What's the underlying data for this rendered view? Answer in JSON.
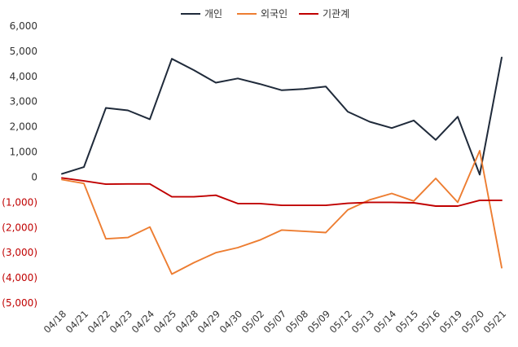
{
  "chart_data": {
    "type": "line",
    "title": "",
    "xlabel": "",
    "ylabel": "",
    "ylim": [
      -5000,
      6000
    ],
    "y_ticks": [
      6000,
      5000,
      4000,
      3000,
      2000,
      1000,
      0,
      -1000,
      -2000,
      -3000,
      -4000,
      -5000
    ],
    "y_tick_labels": [
      "6,000",
      "5,000",
      "4,000",
      "3,000",
      "2,000",
      "1,000",
      "0",
      "(1,000)",
      "(2,000)",
      "(3,000)",
      "(4,000)",
      "(5,000)"
    ],
    "negative_tick_color": "#c00000",
    "positive_tick_color": "#333333",
    "grid": false,
    "legend_position": "top-center",
    "categories": [
      "04/18",
      "04/21",
      "04/22",
      "04/23",
      "04/24",
      "04/25",
      "04/28",
      "04/29",
      "04/30",
      "05/02",
      "05/07",
      "05/08",
      "05/09",
      "05/12",
      "05/13",
      "05/14",
      "05/15",
      "05/16",
      "05/19",
      "05/20",
      "05/21"
    ],
    "series": [
      {
        "name": "개인",
        "color": "#1f2a3a",
        "values": [
          130,
          400,
          2750,
          2650,
          2300,
          4700,
          4250,
          3750,
          3920,
          3700,
          3450,
          3500,
          3600,
          2600,
          2200,
          1950,
          2250,
          1480,
          2400,
          100,
          4750
        ]
      },
      {
        "name": "외국인",
        "color": "#ed7d31",
        "values": [
          -100,
          -250,
          -2450,
          -2400,
          -1980,
          -3850,
          -3400,
          -3000,
          -2800,
          -2500,
          -2100,
          -2150,
          -2200,
          -1300,
          -900,
          -650,
          -950,
          -50,
          -1000,
          1050,
          -3600
        ]
      },
      {
        "name": "기관계",
        "color": "#c00000",
        "values": [
          -30,
          -150,
          -280,
          -270,
          -270,
          -780,
          -780,
          -720,
          -1050,
          -1050,
          -1120,
          -1120,
          -1120,
          -1040,
          -1000,
          -1000,
          -1020,
          -1150,
          -1150,
          -920,
          -920
        ]
      }
    ]
  }
}
